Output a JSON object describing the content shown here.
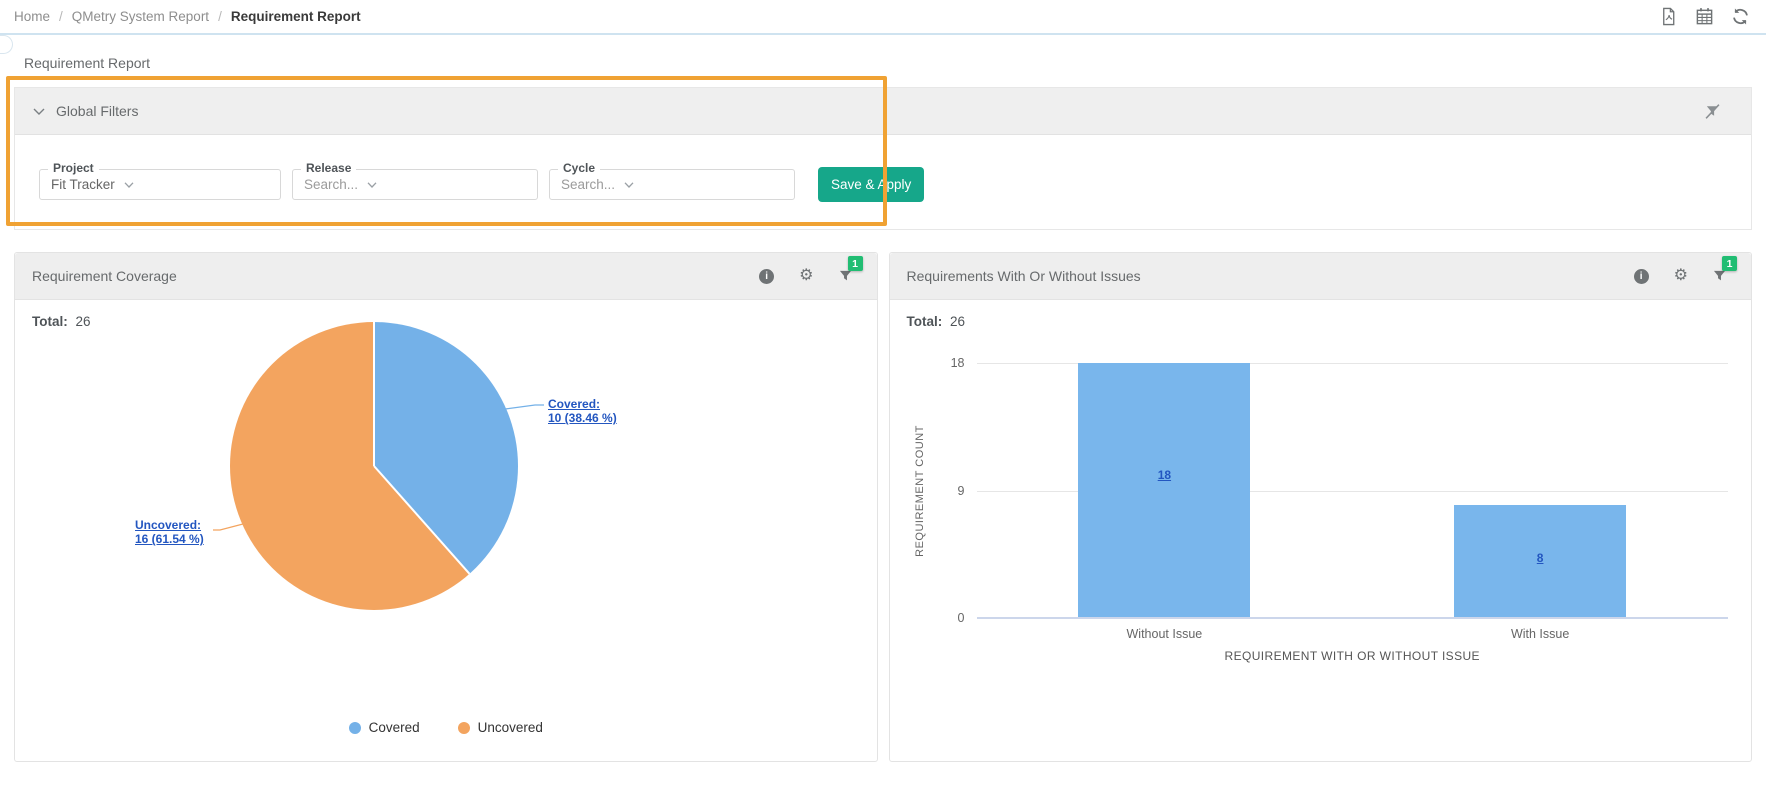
{
  "breadcrumb": {
    "items": [
      "Home",
      "QMetry System Report",
      "Requirement Report"
    ],
    "separator": "/"
  },
  "topbar": {
    "icons": [
      "pdf-export-icon",
      "scheduler-icon",
      "refresh-icon"
    ]
  },
  "page": {
    "title": "Requirement Report"
  },
  "global_filters": {
    "title": "Global Filters",
    "fields": [
      {
        "label": "Project",
        "value": "Fit Tracker"
      },
      {
        "label": "Release",
        "placeholder": "Search..."
      },
      {
        "label": "Cycle",
        "placeholder": "Search..."
      }
    ],
    "apply_label": "Save & Apply",
    "clear_icon": "clear-filter-icon"
  },
  "panels": [
    {
      "filter_badge": "1"
    },
    {
      "filter_badge": "1"
    }
  ],
  "icons": {
    "info_glyph": "i",
    "gear_glyph": "⚙"
  },
  "theme": {
    "accent_green": "#16a78a",
    "highlight_orange": "#f0a233",
    "badge_green": "#21bd73",
    "link_blue": "#2356c0",
    "divider_blue": "#cfe3f0"
  },
  "chart_data": [
    {
      "type": "pie",
      "title": "Requirement Coverage",
      "total_label": "Total:",
      "total": 26,
      "start_angle": 0,
      "legend_position": "bottom",
      "slices": [
        {
          "label": "Covered",
          "value": 10,
          "percent": 38.46,
          "color": "#74b1e8",
          "callout": {
            "line1": "Covered:",
            "line2": "10 (38.46 %)"
          }
        },
        {
          "label": "Uncovered",
          "value": 16,
          "percent": 61.54,
          "color": "#f3a45f",
          "callout": {
            "line1": "Uncovered:",
            "line2": "16 (61.54 %)"
          }
        }
      ]
    },
    {
      "type": "bar",
      "title": "Requirements With Or Without Issues",
      "total_label": "Total:",
      "total": 26,
      "categories": [
        "Without Issue",
        "With Issue"
      ],
      "values": [
        18,
        8
      ],
      "bar_color": "#79b6ec",
      "xlabel": "REQUIREMENT WITH OR WITHOUT ISSUE",
      "ylabel": "REQUIREMENT COUNT",
      "ylim": [
        0,
        18
      ],
      "yticks": [
        0,
        9,
        18
      ],
      "grid": true,
      "value_label_style": "link"
    }
  ]
}
